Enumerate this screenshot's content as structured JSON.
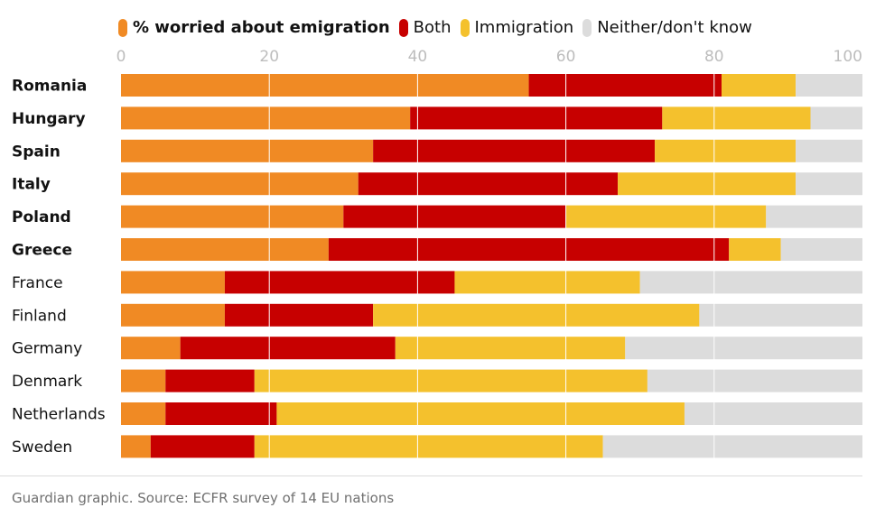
{
  "legend": {
    "items": [
      {
        "label": "% worried about emigration",
        "color": "#f08a24"
      },
      {
        "label": "Both",
        "color": "#c70000"
      },
      {
        "label": "Immigration",
        "color": "#f4c12d"
      },
      {
        "label": "Neither/don't know",
        "color": "#dcdcdc"
      }
    ]
  },
  "source": "Guardian graphic. Source: ECFR survey of 14 EU nations",
  "chart_data": {
    "type": "bar",
    "orientation": "horizontal",
    "stacked": true,
    "title": "",
    "xlabel": "",
    "ylabel": "",
    "xlim": [
      0,
      100
    ],
    "xticks": [
      0,
      20,
      40,
      60,
      80,
      100
    ],
    "grid": true,
    "legend_position": "top",
    "categories": [
      "Romania",
      "Hungary",
      "Spain",
      "Italy",
      "Poland",
      "Greece",
      "France",
      "Finland",
      "Germany",
      "Denmark",
      "Netherlands",
      "Sweden"
    ],
    "bold_categories": [
      "Romania",
      "Hungary",
      "Spain",
      "Italy",
      "Poland",
      "Greece"
    ],
    "series": [
      {
        "name": "% worried about emigration",
        "color": "#f08a24",
        "values": [
          55,
          39,
          34,
          32,
          30,
          28,
          14,
          14,
          8,
          6,
          6,
          4
        ]
      },
      {
        "name": "Both",
        "color": "#c70000",
        "values": [
          26,
          34,
          38,
          35,
          30,
          54,
          31,
          20,
          29,
          12,
          15,
          14
        ]
      },
      {
        "name": "Immigration",
        "color": "#f4c12d",
        "values": [
          10,
          20,
          19,
          24,
          27,
          7,
          25,
          44,
          31,
          53,
          55,
          47
        ]
      },
      {
        "name": "Neither/don't know",
        "color": "#dcdcdc",
        "values": [
          9,
          7,
          9,
          9,
          13,
          11,
          30,
          22,
          32,
          29,
          24,
          35
        ]
      }
    ]
  }
}
